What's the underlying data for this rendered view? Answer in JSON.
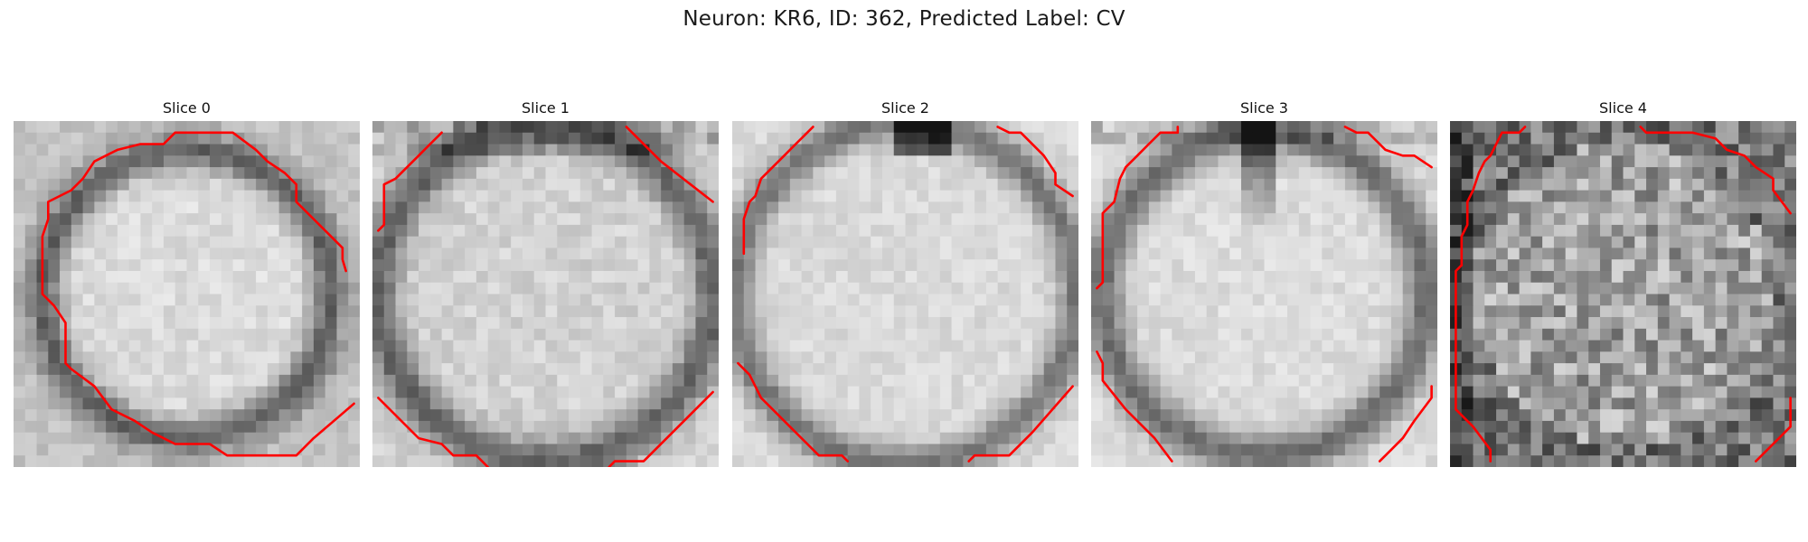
{
  "figure": {
    "title": "Neuron: KR6, ID: 362, Predicted Label: CV",
    "slices": [
      {
        "label": "Slice 0"
      },
      {
        "label": "Slice 1"
      },
      {
        "label": "Slice 2"
      },
      {
        "label": "Slice 3"
      },
      {
        "label": "Slice 4"
      }
    ]
  },
  "colors": {
    "contour": "#ff0000",
    "background": "#ffffff",
    "text": "#111111"
  }
}
